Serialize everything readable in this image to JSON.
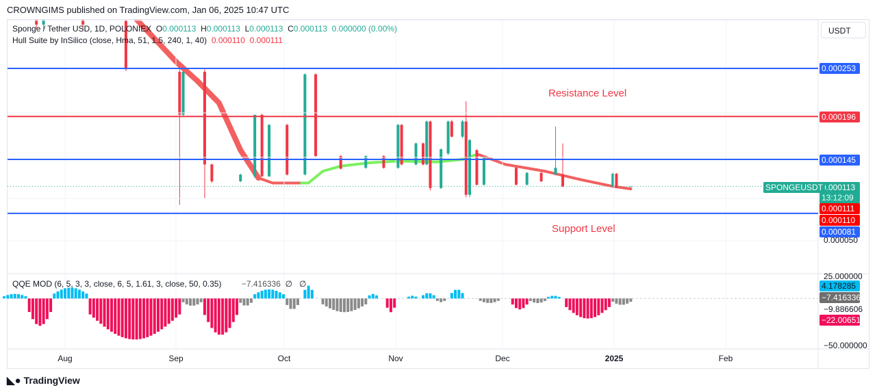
{
  "header": {
    "published": "CROWNGIMS published on TradingView.com, Jan 06, 2025 10:47 UTC"
  },
  "legend": {
    "symbol": "Sponge / Tether USD, 1D, POLONIEX",
    "o_label": "O",
    "o": "0.000113",
    "h_label": "H",
    "h": "0.000113",
    "l_label": "L",
    "l": "0.000113",
    "c_label": "C",
    "c": "0.000113",
    "change": "0.000000 (0.00%)",
    "hull": "Hull Suite by InSilico (close, Hma, 51, 1.5, 240, 1, 40)",
    "hull_v1": "0.000110",
    "hull_v2": "0.000111",
    "qqe": "QQE MOD (6, 5, 3, 3, close, 6, 5, 1.61, 3, close, 50, 0.35)",
    "qqe_v": "−7.416336",
    "qqe_na1": "∅",
    "qqe_na2": "∅"
  },
  "currency": "USDT",
  "annotations": {
    "resistance": "Resistance Level",
    "support": "Support Level"
  },
  "colors": {
    "up": "#22ab94",
    "down": "#f23645",
    "hull_up": "#7cf060",
    "hull_down": "#f26060",
    "line_blue": "#2962ff",
    "line_red": "#f23645",
    "qqe_blue": "#00bcf2",
    "qqe_pink": "#f0105a",
    "qqe_gray": "#8a8a8a"
  },
  "chart_data": {
    "type": "candlestick",
    "price_scale": {
      "ylim": [
        4e-05,
        0.00031
      ],
      "ticks": [
        "0.000050"
      ]
    },
    "hlines": [
      {
        "price": 0.000253,
        "label": "0.000253",
        "color": "#2962ff"
      },
      {
        "price": 0.000196,
        "label": "0.000196",
        "color": "#f23645"
      },
      {
        "price": 0.000145,
        "label": "0.000145",
        "color": "#2962ff"
      },
      {
        "price": 8.1e-05,
        "label": "0.000081",
        "color": "#2962ff"
      }
    ],
    "last": {
      "symbol": "SPONGEUSDT",
      "price": "0.000113",
      "countdown": "13:12:09",
      "hull_a": "0.000111",
      "hull_b": "0.000110"
    },
    "candles": [
      [
        "2024-07-24",
        0.00033,
        0.00034,
        0.0003,
        0.000305
      ],
      [
        "2024-07-26",
        0.000305,
        0.00034,
        0.0003,
        0.000335
      ],
      [
        "2024-08-06",
        0.000335,
        0.00034,
        0.0003,
        0.000305
      ],
      [
        "2024-08-18",
        0.00031,
        0.000312,
        0.00025,
        0.000252
      ],
      [
        "2024-09-02",
        0.000249,
        0.000252,
        9.1e-05,
        0.000198
      ],
      [
        "2024-09-03",
        0.000198,
        0.00025,
        0.000196,
        0.000249
      ],
      [
        "2024-09-09",
        0.000249,
        0.000252,
        9.9e-05,
        0.000139
      ],
      [
        "2024-09-11",
        0.000139,
        0.00014,
        0.000117,
        0.000119
      ],
      [
        "2024-09-19",
        0.000119,
        0.000128,
        0.000118,
        0.000127
      ],
      [
        "2024-09-23",
        0.000125,
        0.000198,
        0.000123,
        0.000198
      ],
      [
        "2024-09-25",
        0.000198,
        0.000199,
        0.000124,
        0.000125
      ],
      [
        "2024-09-27",
        0.000125,
        0.000187,
        0.000124,
        0.000186
      ],
      [
        "2024-10-02",
        0.000186,
        0.000187,
        0.000126,
        0.000127
      ],
      [
        "2024-10-07",
        0.000127,
        0.000247,
        0.000126,
        0.000246
      ],
      [
        "2024-10-10",
        0.000246,
        0.000247,
        0.000148,
        0.000149
      ],
      [
        "2024-10-17",
        0.000149,
        0.00015,
        0.000133,
        0.000134
      ],
      [
        "2024-10-24",
        0.000135,
        0.00015,
        0.000134,
        0.000149
      ],
      [
        "2024-10-29",
        0.000149,
        0.00015,
        0.000134,
        0.000135
      ],
      [
        "2024-11-02",
        0.000135,
        0.000187,
        0.000134,
        0.000186
      ],
      [
        "2024-11-03",
        0.000186,
        0.000187,
        0.000138,
        0.000139
      ],
      [
        "2024-11-07",
        0.000139,
        0.000165,
        0.000138,
        0.000164
      ],
      [
        "2024-11-09",
        0.000164,
        0.000165,
        0.000138,
        0.000139
      ],
      [
        "2024-11-10",
        0.000139,
        0.000191,
        0.000138,
        0.00019
      ],
      [
        "2024-11-11",
        0.00019,
        0.000191,
        0.000108,
        0.000111
      ],
      [
        "2024-11-14",
        0.000111,
        0.000158,
        0.00011,
        0.000157
      ],
      [
        "2024-11-16",
        0.000152,
        0.000191,
        0.00015,
        0.00019
      ],
      [
        "2024-11-17",
        0.00019,
        0.000192,
        0.000171,
        0.000172
      ],
      [
        "2024-11-20",
        0.000172,
        0.000192,
        0.00017,
        0.00019
      ],
      [
        "2024-11-21",
        0.00019,
        0.000214,
        0.0001,
        0.000103
      ],
      [
        "2024-11-22",
        0.000103,
        0.000169,
        0.0001,
        0.000168
      ],
      [
        "2024-11-24",
        0.000156,
        0.000157,
        0.000114,
        0.000115
      ],
      [
        "2024-11-26",
        0.000115,
        0.000148,
        0.000114,
        0.000147
      ],
      [
        "2024-12-05",
        0.000135,
        0.000136,
        0.000114,
        0.000115
      ],
      [
        "2024-12-08",
        0.000115,
        0.00013,
        0.000114,
        0.000129
      ],
      [
        "2024-12-12",
        0.000129,
        0.00013,
        0.000118,
        0.000119
      ],
      [
        "2024-12-16",
        0.000127,
        0.000184,
        0.000126,
        0.000135
      ],
      [
        "2024-12-18",
        0.000127,
        0.000164,
        0.000112,
        0.000113
      ],
      [
        "2025-01-01",
        0.000113,
        0.000129,
        0.000112,
        0.000128
      ],
      [
        "2025-01-02",
        0.000128,
        0.000129,
        0.000111,
        0.000111
      ],
      [
        "2025-01-06",
        0.000113,
        0.000113,
        0.000113,
        0.000113
      ]
    ],
    "hull": [
      [
        "2024-08-21",
        0.000311,
        "down"
      ],
      [
        "2024-09-01",
        0.000261,
        "down"
      ],
      [
        "2024-09-07",
        0.000238,
        "down"
      ],
      [
        "2024-09-13",
        0.000212,
        "down"
      ],
      [
        "2024-09-19",
        0.000156,
        "down"
      ],
      [
        "2024-09-24",
        0.000123,
        "down"
      ],
      [
        "2024-09-28",
        0.000117,
        "down"
      ],
      [
        "2024-10-06",
        0.000117,
        "down"
      ],
      [
        "2024-10-08",
        0.000117,
        "up"
      ],
      [
        "2024-10-12",
        0.000131,
        "up"
      ],
      [
        "2024-10-17",
        0.000137,
        "up"
      ],
      [
        "2024-10-25",
        0.000141,
        "up"
      ],
      [
        "2024-11-02",
        0.000143,
        "up"
      ],
      [
        "2024-11-13",
        0.000142,
        "up"
      ],
      [
        "2024-11-20",
        0.000145,
        "up"
      ],
      [
        "2024-11-24",
        0.000151,
        "up"
      ],
      [
        "2024-11-25",
        0.00015,
        "down"
      ],
      [
        "2024-12-02",
        0.000139,
        "down"
      ],
      [
        "2024-12-13",
        0.000131,
        "down"
      ],
      [
        "2024-12-23",
        0.000121,
        "down"
      ],
      [
        "2025-01-01",
        0.000113,
        "down"
      ],
      [
        "2025-01-06",
        0.00011,
        "down"
      ]
    ],
    "x_ticks": [
      "Aug",
      "Sep",
      "Oct",
      "Nov",
      "Dec",
      "2025",
      "Feb"
    ],
    "qqe": {
      "ylim": [
        -50,
        25
      ],
      "ticks": [
        "25.000000",
        "−9.886606",
        "−50.000000"
      ],
      "labels": [
        {
          "v": "4.178285",
          "color": "#00bcf2"
        },
        {
          "v": "−7.416336",
          "color": "#6e6e6e"
        },
        {
          "v": "−22.006515",
          "color": "#f0105a"
        }
      ],
      "histogram": [
        [
          "2024-07-15",
          "2024-07-21",
          5,
          "blue"
        ],
        [
          "2024-07-22",
          "2024-07-28",
          -30,
          "pink"
        ],
        [
          "2024-07-29",
          "2024-08-07",
          12,
          "blue"
        ],
        [
          "2024-08-08",
          "2024-09-02",
          -45,
          "pink"
        ],
        [
          "2024-09-03",
          "2024-09-08",
          -8,
          "gray"
        ],
        [
          "2024-09-09",
          "2024-09-18",
          -40,
          "pink"
        ],
        [
          "2024-09-19",
          "2024-09-22",
          -8,
          "gray"
        ],
        [
          "2024-09-23",
          "2024-10-01",
          10,
          "blue"
        ],
        [
          "2024-10-02",
          "2024-10-05",
          -12,
          "gray"
        ],
        [
          "2024-10-07",
          "2024-10-09",
          14,
          "blue"
        ],
        [
          "2024-10-12",
          "2024-10-24",
          -15,
          "gray"
        ],
        [
          "2024-10-25",
          "2024-10-27",
          5,
          "blue"
        ],
        [
          "2024-10-30",
          "2024-11-01",
          -15,
          "pink"
        ],
        [
          "2024-11-05",
          "2024-11-07",
          3,
          "blue"
        ],
        [
          "2024-11-09",
          "2024-11-12",
          6,
          "blue"
        ],
        [
          "2024-11-13",
          "2024-11-15",
          -4,
          "gray"
        ],
        [
          "2024-11-17",
          "2024-11-20",
          10,
          "blue"
        ],
        [
          "2024-11-25",
          "2024-11-30",
          -5,
          "gray"
        ],
        [
          "2024-12-04",
          "2024-12-08",
          -12,
          "pink"
        ],
        [
          "2024-12-09",
          "2024-12-13",
          -5,
          "gray"
        ],
        [
          "2024-12-14",
          "2024-12-17",
          3,
          "blue"
        ],
        [
          "2024-12-19",
          "2024-12-31",
          -22,
          "pink"
        ],
        [
          "2025-01-01",
          "2025-01-06",
          -7,
          "gray"
        ]
      ]
    }
  },
  "footer": {
    "brand": "TradingView"
  }
}
